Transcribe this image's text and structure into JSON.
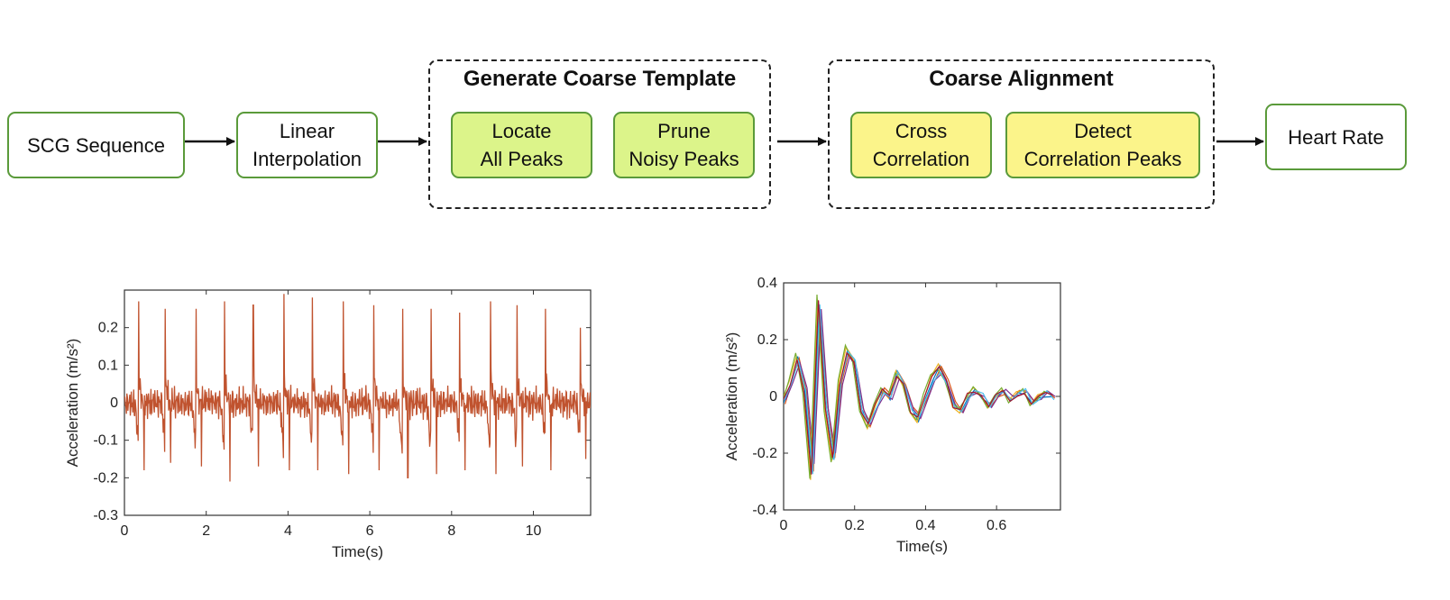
{
  "pipeline": {
    "scg_sequence": "SCG Sequence",
    "linear_interpolation": [
      "Linear",
      "Interpolation"
    ],
    "group_template": {
      "title": "Generate Coarse Template",
      "locate": [
        "Locate",
        "All Peaks"
      ],
      "prune": [
        "Prune",
        "Noisy Peaks"
      ]
    },
    "group_alignment": {
      "title": "Coarse Alignment",
      "cross": [
        "Cross",
        "Correlation"
      ],
      "detect": [
        "Detect",
        "Correlation Peaks"
      ]
    },
    "heart_rate": "Heart Rate",
    "colors": {
      "box_border": "#5a9a3a",
      "green_fill": "#dcf48a",
      "yellow_fill": "#fbf48a"
    }
  },
  "chart_data": [
    {
      "type": "line",
      "xlabel": "Time(s)",
      "ylabel": "Acceleration (m/s²)",
      "xlim": [
        0,
        11.4
      ],
      "ylim": [
        -0.3,
        0.3
      ],
      "xticks": [
        0,
        2,
        4,
        6,
        8,
        10
      ],
      "yticks": [
        -0.3,
        -0.2,
        -0.1,
        0,
        0.1,
        0.2
      ],
      "series": [
        {
          "color": "#c0532f",
          "beat_times": [
            0.35,
            1.0,
            1.75,
            2.45,
            3.15,
            3.9,
            4.6,
            5.35,
            6.1,
            6.8,
            7.5,
            8.2,
            8.95,
            9.6,
            10.3,
            11.15
          ],
          "peak_values": [
            0.27,
            0.25,
            0.25,
            0.27,
            0.26,
            0.29,
            0.28,
            0.27,
            0.26,
            0.25,
            0.25,
            0.24,
            0.27,
            0.26,
            0.25,
            0.2
          ],
          "trough_values": [
            -0.18,
            -0.16,
            -0.17,
            -0.21,
            -0.17,
            -0.18,
            -0.18,
            -0.19,
            -0.18,
            -0.2,
            -0.19,
            -0.18,
            -0.19,
            -0.17,
            -0.18,
            -0.15
          ]
        }
      ],
      "grid": false
    },
    {
      "type": "line",
      "xlabel": "Time(s)",
      "ylabel": "Acceleration (m/s²)",
      "xlim": [
        0,
        0.78
      ],
      "ylim": [
        -0.4,
        0.4
      ],
      "xticks": [
        0,
        0.2,
        0.4,
        0.6
      ],
      "yticks": [
        -0.4,
        -0.2,
        0,
        0.2,
        0.4
      ],
      "base_wave": {
        "t": [
          0,
          0.02,
          0.04,
          0.06,
          0.08,
          0.1,
          0.12,
          0.14,
          0.16,
          0.18,
          0.2,
          0.22,
          0.24,
          0.26,
          0.28,
          0.3,
          0.32,
          0.34,
          0.36,
          0.38,
          0.4,
          0.42,
          0.44,
          0.46,
          0.48,
          0.5,
          0.52,
          0.54,
          0.56,
          0.58,
          0.6,
          0.62,
          0.64,
          0.66,
          0.68,
          0.7,
          0.72,
          0.74,
          0.76
        ],
        "v": [
          -0.02,
          0.05,
          0.13,
          0.02,
          -0.27,
          0.33,
          -0.04,
          -0.22,
          0.05,
          0.16,
          0.12,
          -0.05,
          -0.1,
          -0.03,
          0.02,
          0.0,
          0.08,
          0.04,
          -0.05,
          -0.08,
          0.0,
          0.06,
          0.1,
          0.05,
          -0.03,
          -0.05,
          0.0,
          0.02,
          0.0,
          -0.03,
          0.0,
          0.02,
          -0.01,
          0.01,
          0.02,
          -0.02,
          0.0,
          0.01,
          0.0
        ]
      },
      "series": [
        {
          "color": "#0072bd",
          "scale": 1.0,
          "shift": 0.0
        },
        {
          "color": "#d95319",
          "scale": 0.95,
          "shift": 0.004
        },
        {
          "color": "#edb120",
          "scale": 1.05,
          "shift": -0.004
        },
        {
          "color": "#7e2f8e",
          "scale": 0.9,
          "shift": 0.006
        },
        {
          "color": "#77ac30",
          "scale": 1.08,
          "shift": -0.006
        },
        {
          "color": "#4dbeee",
          "scale": 0.97,
          "shift": 0.002
        },
        {
          "color": "#a2142f",
          "scale": 1.02,
          "shift": -0.002
        }
      ],
      "grid": false
    }
  ]
}
